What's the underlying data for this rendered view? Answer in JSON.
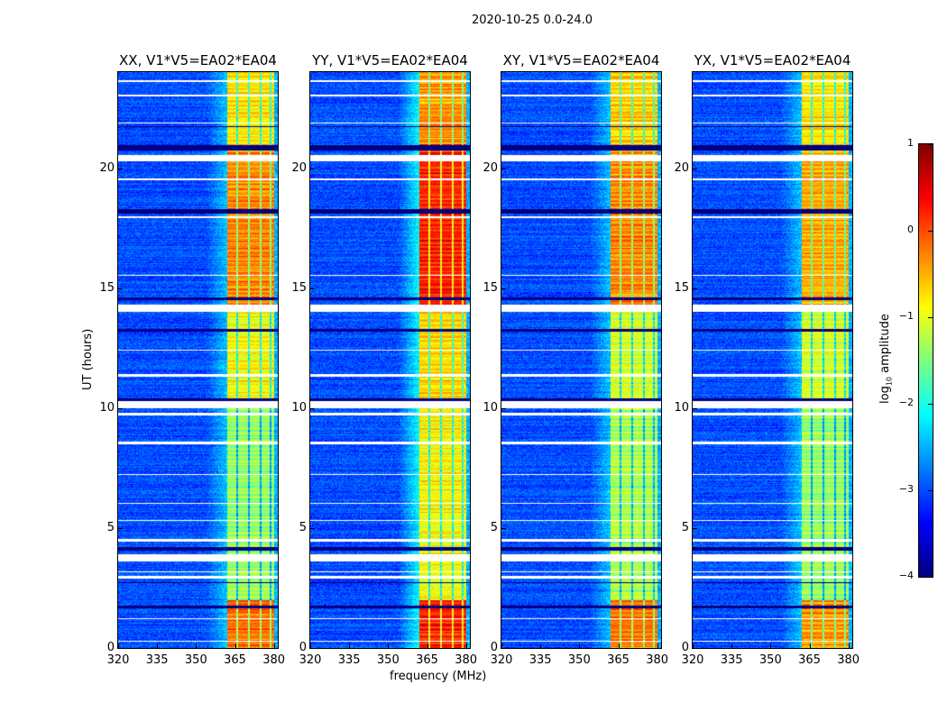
{
  "chart_data": {
    "type": "heatmap",
    "title": "2020-10-25 0.0-24.0",
    "xlabel": "frequency (MHz)",
    "ylabel": "UT (hours)",
    "xlim": [
      320,
      381.5
    ],
    "ylim": [
      0,
      24
    ],
    "xticks": [
      320,
      335,
      350,
      365,
      380
    ],
    "yticks": [
      0,
      5,
      10,
      15,
      20
    ],
    "colormap": "jet",
    "colorbar": {
      "label_prefix": "log",
      "label_sub": "10",
      "label_suffix": " amplitude",
      "range": [
        -4,
        1
      ],
      "ticks": [
        1,
        0,
        -1,
        -2,
        -3,
        -4
      ]
    },
    "background_level": -3.0,
    "band_mhz": [
      362,
      380
    ],
    "band_dark_channels_mhz": [
      366,
      370.5,
      375,
      378.6
    ],
    "flagged_hours_white": [
      [
        0.25,
        0.3
      ],
      [
        1.2,
        1.25
      ],
      [
        2.9,
        3.0
      ],
      [
        3.15,
        3.2
      ],
      [
        3.6,
        3.9
      ],
      [
        4.45,
        4.55
      ],
      [
        5.3,
        5.35
      ],
      [
        6.0,
        6.05
      ],
      [
        7.2,
        7.25
      ],
      [
        8.5,
        8.6
      ],
      [
        9.7,
        9.8
      ],
      [
        10.0,
        10.3
      ],
      [
        11.3,
        11.4
      ],
      [
        12.4,
        12.45
      ],
      [
        14.0,
        14.3
      ],
      [
        15.5,
        15.55
      ],
      [
        17.9,
        18.0
      ],
      [
        19.5,
        19.55
      ],
      [
        20.3,
        20.55
      ],
      [
        21.85,
        21.9
      ],
      [
        23.0,
        23.05
      ],
      [
        23.6,
        23.65
      ]
    ],
    "flagged_hours_black": [
      [
        1.65,
        1.75
      ],
      [
        2.7,
        2.75
      ],
      [
        4.05,
        4.2
      ],
      [
        10.3,
        10.4
      ],
      [
        13.2,
        13.3
      ],
      [
        14.5,
        14.6
      ],
      [
        18.1,
        18.3
      ],
      [
        20.75,
        20.95
      ],
      [
        21.7,
        21.75
      ]
    ],
    "panels": [
      {
        "title": "XX, V1*V5=EA02*EA04",
        "band_levels": [
          [
            0,
            2,
            -0.3
          ],
          [
            2,
            10,
            -1.5
          ],
          [
            10,
            14,
            -1.0
          ],
          [
            14,
            21,
            -0.4
          ],
          [
            21,
            24,
            -0.9
          ]
        ]
      },
      {
        "title": "YY, V1*V5=EA02*EA04",
        "band_levels": [
          [
            0,
            2,
            0.1
          ],
          [
            2,
            10,
            -1.0
          ],
          [
            10,
            14,
            -0.8
          ],
          [
            14,
            21,
            0.1
          ],
          [
            21,
            24,
            -0.5
          ]
        ]
      },
      {
        "title": "XY, V1*V5=EA02*EA04",
        "band_levels": [
          [
            0,
            2,
            -0.3
          ],
          [
            2,
            10,
            -1.4
          ],
          [
            10,
            14,
            -1.2
          ],
          [
            14,
            21,
            -0.4
          ],
          [
            21,
            24,
            -0.8
          ]
        ]
      },
      {
        "title": "YX, V1*V5=EA02*EA04",
        "band_levels": [
          [
            0,
            2,
            -0.5
          ],
          [
            2,
            10,
            -1.5
          ],
          [
            10,
            14,
            -1.2
          ],
          [
            14,
            21,
            -0.6
          ],
          [
            21,
            24,
            -0.9
          ]
        ]
      }
    ]
  }
}
